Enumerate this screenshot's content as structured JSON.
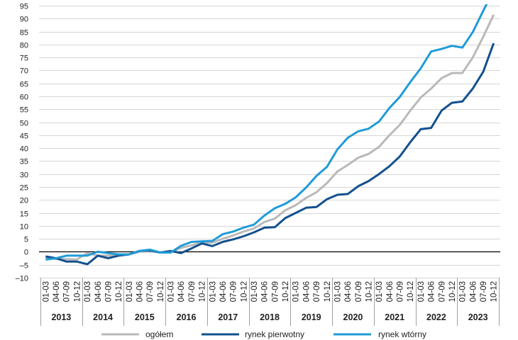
{
  "chart_data": {
    "type": "line",
    "ylim": [
      -10,
      95
    ],
    "ytick_step": 5,
    "ytick_labels": [
      "95",
      "90",
      "85",
      "80",
      "75",
      "70",
      "65",
      "60",
      "55",
      "50",
      "45",
      "40",
      "35",
      "30",
      "25",
      "20",
      "15",
      "10",
      "5",
      "0",
      "–5",
      "–10"
    ],
    "years": [
      "2013",
      "2014",
      "2015",
      "2016",
      "2017",
      "2018",
      "2019",
      "2020",
      "2021",
      "2022",
      "2023"
    ],
    "quarters": [
      "01-03",
      "04-06",
      "07-09",
      "10-12"
    ],
    "grid": true,
    "zero_line": true,
    "legend": "bottom",
    "series": [
      {
        "name": "ogółem",
        "color": "#b9b9b9",
        "values": [
          -2.3,
          -2.8,
          -2.8,
          -3.0,
          -0.5,
          -1.5,
          -1.5,
          -1.2,
          -1.0,
          0.0,
          0.3,
          -0.3,
          -0.3,
          1.5,
          2.5,
          3.5,
          3.5,
          5.0,
          6.3,
          7.8,
          9.0,
          11.5,
          12.8,
          16.0,
          18.0,
          20.8,
          23.0,
          26.5,
          31.0,
          33.5,
          36.3,
          37.8,
          40.5,
          45.0,
          49.0,
          54.5,
          59.5,
          63.0,
          67.0,
          69.0,
          69.0,
          75.0,
          83.0,
          91.5
        ]
      },
      {
        "name": "rynek pierwotny",
        "color": "#13508f",
        "values": [
          -1.8,
          -2.5,
          -3.8,
          -3.8,
          -4.8,
          -1.5,
          -2.5,
          -1.5,
          -1.0,
          0.3,
          0.5,
          -0.3,
          0.3,
          -0.5,
          1.3,
          3.2,
          2.2,
          3.8,
          4.8,
          6.0,
          7.5,
          9.3,
          9.5,
          13.0,
          15.0,
          17.0,
          17.3,
          20.3,
          22.0,
          22.3,
          25.3,
          27.3,
          30.0,
          33.0,
          36.8,
          42.3,
          47.3,
          47.8,
          54.5,
          57.5,
          58.0,
          63.0,
          69.5,
          80.5
        ]
      },
      {
        "name": "rynek wtórny",
        "color": "#1f9bd7",
        "values": [
          -3.0,
          -2.5,
          -1.5,
          -1.5,
          -1.5,
          0.0,
          -0.5,
          -1.0,
          -1.0,
          0.3,
          0.8,
          -0.3,
          -0.3,
          2.3,
          3.8,
          4.0,
          4.2,
          6.8,
          7.8,
          9.3,
          10.5,
          14.0,
          16.8,
          18.5,
          21.0,
          24.8,
          29.3,
          32.8,
          39.5,
          44.0,
          46.5,
          47.5,
          50.3,
          55.5,
          59.8,
          65.5,
          70.8,
          77.3,
          78.3,
          79.5,
          78.8,
          84.8,
          93.0,
          101.0
        ]
      }
    ]
  }
}
